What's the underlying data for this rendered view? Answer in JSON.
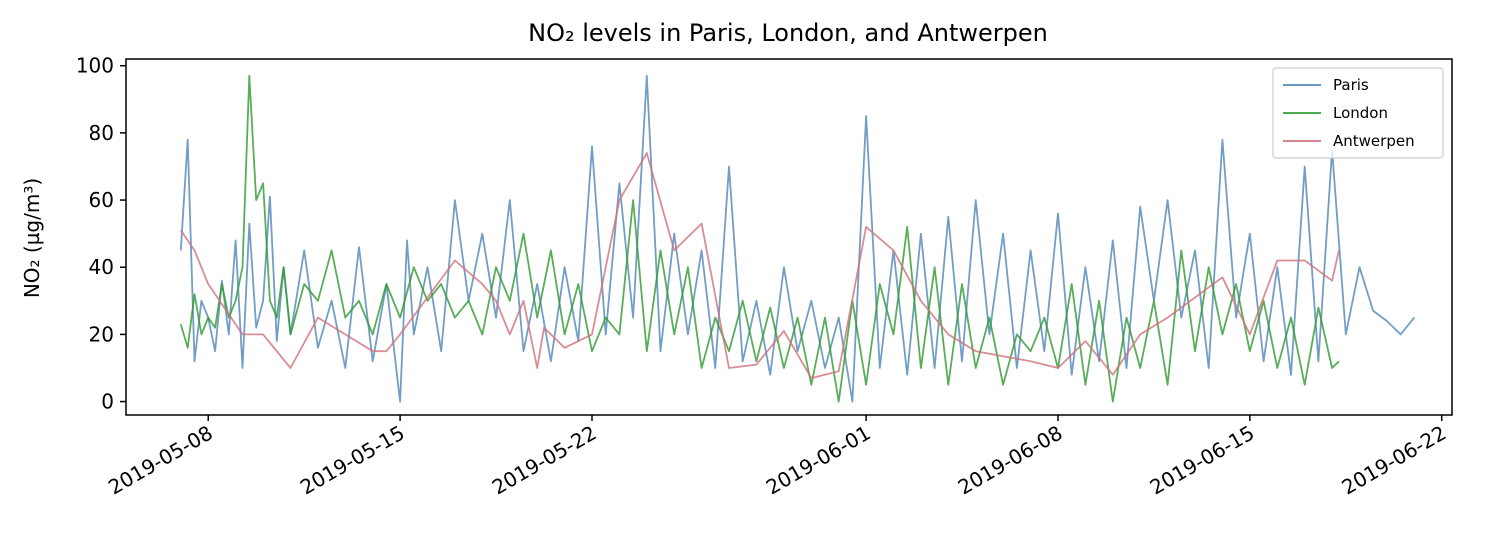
{
  "chart_data": {
    "type": "line",
    "title": "NO₂ levels in Paris, London, and Antwerpen",
    "xlabel": "",
    "ylabel": "NO₂ (µg/m³)",
    "x_type": "datetime",
    "xlim": [
      "2019-05-05T00:00",
      "2019-06-22T09:00"
    ],
    "ylim": [
      -4,
      102
    ],
    "x_ticks": [
      "2019-05-08",
      "2019-05-15",
      "2019-05-22",
      "2019-06-01",
      "2019-06-08",
      "2019-06-15",
      "2019-06-22"
    ],
    "y_ticks": [
      0,
      20,
      40,
      60,
      80,
      100
    ],
    "grid": false,
    "legend": {
      "position": "top-right"
    },
    "series": [
      {
        "name": "Paris",
        "color": "#4f86b8",
        "x": [
          "2019-05-07T00:00",
          "2019-05-07T06:00",
          "2019-05-07T12:00",
          "2019-05-07T18:00",
          "2019-05-08T00:00",
          "2019-05-08T06:00",
          "2019-05-08T12:00",
          "2019-05-08T18:00",
          "2019-05-09T00:00",
          "2019-05-09T06:00",
          "2019-05-09T12:00",
          "2019-05-09T18:00",
          "2019-05-10T00:00",
          "2019-05-10T06:00",
          "2019-05-10T12:00",
          "2019-05-10T18:00",
          "2019-05-11T00:00",
          "2019-05-11T12:00",
          "2019-05-12T00:00",
          "2019-05-12T12:00",
          "2019-05-13T00:00",
          "2019-05-13T12:00",
          "2019-05-14T00:00",
          "2019-05-14T12:00",
          "2019-05-15T00:00",
          "2019-05-15T06:00",
          "2019-05-15T12:00",
          "2019-05-16T00:00",
          "2019-05-16T12:00",
          "2019-05-17T00:00",
          "2019-05-17T12:00",
          "2019-05-18T00:00",
          "2019-05-18T12:00",
          "2019-05-19T00:00",
          "2019-05-19T12:00",
          "2019-05-20T00:00",
          "2019-05-20T12:00",
          "2019-05-21T00:00",
          "2019-05-21T12:00",
          "2019-05-22T00:00",
          "2019-05-22T12:00",
          "2019-05-23T00:00",
          "2019-05-23T12:00",
          "2019-05-24T00:00",
          "2019-05-24T12:00",
          "2019-05-25T00:00",
          "2019-05-25T12:00",
          "2019-05-26T00:00",
          "2019-05-26T12:00",
          "2019-05-27T00:00",
          "2019-05-27T12:00",
          "2019-05-28T00:00",
          "2019-05-28T12:00",
          "2019-05-29T00:00",
          "2019-05-29T12:00",
          "2019-05-30T00:00",
          "2019-05-30T12:00",
          "2019-05-31T00:00",
          "2019-05-31T12:00",
          "2019-06-01T00:00",
          "2019-06-01T12:00",
          "2019-06-02T00:00",
          "2019-06-02T12:00",
          "2019-06-03T00:00",
          "2019-06-03T12:00",
          "2019-06-04T00:00",
          "2019-06-04T12:00",
          "2019-06-05T00:00",
          "2019-06-05T12:00",
          "2019-06-06T00:00",
          "2019-06-06T12:00",
          "2019-06-07T00:00",
          "2019-06-07T12:00",
          "2019-06-08T00:00",
          "2019-06-08T12:00",
          "2019-06-09T00:00",
          "2019-06-09T12:00",
          "2019-06-10T00:00",
          "2019-06-10T12:00",
          "2019-06-11T00:00",
          "2019-06-11T12:00",
          "2019-06-12T00:00",
          "2019-06-12T12:00",
          "2019-06-13T00:00",
          "2019-06-13T12:00",
          "2019-06-14T00:00",
          "2019-06-14T12:00",
          "2019-06-15T00:00",
          "2019-06-15T12:00",
          "2019-06-16T00:00",
          "2019-06-16T12:00",
          "2019-06-17T00:00",
          "2019-06-17T12:00",
          "2019-06-18T00:00",
          "2019-06-18T12:00",
          "2019-06-19T00:00",
          "2019-06-19T12:00",
          "2019-06-20T00:00",
          "2019-06-20T12:00",
          "2019-06-21T00:00"
        ],
        "y": [
          45,
          78,
          12,
          30,
          25,
          15,
          36,
          20,
          48,
          10,
          53,
          22,
          30,
          61,
          18,
          40,
          20,
          45,
          16,
          30,
          10,
          46,
          12,
          35,
          0,
          48,
          20,
          40,
          15,
          60,
          30,
          50,
          25,
          60,
          15,
          35,
          12,
          40,
          18,
          76,
          20,
          65,
          25,
          97,
          15,
          50,
          20,
          45,
          10,
          70,
          12,
          30,
          8,
          40,
          15,
          30,
          10,
          25,
          0,
          85,
          10,
          45,
          8,
          50,
          10,
          55,
          12,
          60,
          20,
          50,
          10,
          45,
          15,
          56,
          8,
          40,
          12,
          48,
          10,
          58,
          30,
          60,
          25,
          45,
          10,
          78,
          25,
          50,
          12,
          40,
          8,
          70,
          12,
          75,
          20,
          40,
          27,
          24,
          20,
          25
        ]
      },
      {
        "name": "London",
        "color": "#2e9a2e",
        "x": [
          "2019-05-07T00:00",
          "2019-05-07T06:00",
          "2019-05-07T12:00",
          "2019-05-07T18:00",
          "2019-05-08T00:00",
          "2019-05-08T06:00",
          "2019-05-08T12:00",
          "2019-05-08T18:00",
          "2019-05-09T00:00",
          "2019-05-09T06:00",
          "2019-05-09T12:00",
          "2019-05-09T18:00",
          "2019-05-10T00:00",
          "2019-05-10T06:00",
          "2019-05-10T12:00",
          "2019-05-10T18:00",
          "2019-05-11T00:00",
          "2019-05-11T12:00",
          "2019-05-12T00:00",
          "2019-05-12T12:00",
          "2019-05-13T00:00",
          "2019-05-13T12:00",
          "2019-05-14T00:00",
          "2019-05-14T12:00",
          "2019-05-15T00:00",
          "2019-05-15T12:00",
          "2019-05-16T00:00",
          "2019-05-16T12:00",
          "2019-05-17T00:00",
          "2019-05-17T12:00",
          "2019-05-18T00:00",
          "2019-05-18T12:00",
          "2019-05-19T00:00",
          "2019-05-19T12:00",
          "2019-05-20T00:00",
          "2019-05-20T12:00",
          "2019-05-21T00:00",
          "2019-05-21T12:00",
          "2019-05-22T00:00",
          "2019-05-22T12:00",
          "2019-05-23T00:00",
          "2019-05-23T12:00",
          "2019-05-24T00:00",
          "2019-05-24T12:00",
          "2019-05-25T00:00",
          "2019-05-25T12:00",
          "2019-05-26T00:00",
          "2019-05-26T12:00",
          "2019-05-27T00:00",
          "2019-05-27T12:00",
          "2019-05-28T00:00",
          "2019-05-28T12:00",
          "2019-05-29T00:00",
          "2019-05-29T12:00",
          "2019-05-30T00:00",
          "2019-05-30T12:00",
          "2019-05-31T00:00",
          "2019-05-31T12:00",
          "2019-06-01T00:00",
          "2019-06-01T12:00",
          "2019-06-02T00:00",
          "2019-06-02T12:00",
          "2019-06-03T00:00",
          "2019-06-03T12:00",
          "2019-06-04T00:00",
          "2019-06-04T12:00",
          "2019-06-05T00:00",
          "2019-06-05T12:00",
          "2019-06-06T00:00",
          "2019-06-06T12:00",
          "2019-06-07T00:00",
          "2019-06-07T12:00",
          "2019-06-08T00:00",
          "2019-06-08T12:00",
          "2019-06-09T00:00",
          "2019-06-09T12:00",
          "2019-06-10T00:00",
          "2019-06-10T12:00",
          "2019-06-11T00:00",
          "2019-06-11T12:00",
          "2019-06-12T00:00",
          "2019-06-12T12:00",
          "2019-06-13T00:00",
          "2019-06-13T12:00",
          "2019-06-14T00:00",
          "2019-06-14T12:00",
          "2019-06-15T00:00",
          "2019-06-15T12:00",
          "2019-06-16T00:00",
          "2019-06-16T12:00",
          "2019-06-17T00:00",
          "2019-06-17T12:00",
          "2019-06-18T00:00",
          "2019-06-18T06:00"
        ],
        "y": [
          23,
          16,
          32,
          20,
          25,
          22,
          35,
          25,
          30,
          40,
          97,
          60,
          65,
          30,
          25,
          40,
          20,
          35,
          30,
          45,
          25,
          30,
          20,
          35,
          25,
          40,
          30,
          35,
          25,
          30,
          20,
          40,
          30,
          50,
          25,
          45,
          20,
          35,
          15,
          25,
          20,
          60,
          15,
          45,
          20,
          40,
          10,
          25,
          15,
          30,
          12,
          28,
          10,
          25,
          5,
          25,
          0,
          30,
          5,
          35,
          20,
          52,
          10,
          40,
          5,
          35,
          10,
          25,
          5,
          20,
          15,
          25,
          10,
          35,
          5,
          30,
          0,
          25,
          10,
          30,
          5,
          45,
          15,
          40,
          20,
          35,
          15,
          30,
          10,
          25,
          5,
          28,
          10,
          12
        ]
      },
      {
        "name": "Antwerpen",
        "color": "#d07079",
        "x": [
          "2019-05-07T00:00",
          "2019-05-07T12:00",
          "2019-05-08T00:00",
          "2019-05-09T06:00",
          "2019-05-10T00:00",
          "2019-05-11T00:00",
          "2019-05-12T00:00",
          "2019-05-13T00:00",
          "2019-05-14T00:00",
          "2019-05-14T12:00",
          "2019-05-15T00:00",
          "2019-05-17T00:00",
          "2019-05-18T00:00",
          "2019-05-18T12:00",
          "2019-05-19T00:00",
          "2019-05-19T12:00",
          "2019-05-20T00:00",
          "2019-05-20T06:00",
          "2019-05-21T00:00",
          "2019-05-22T00:00",
          "2019-05-23T00:00",
          "2019-05-24T00:00",
          "2019-05-25T00:00",
          "2019-05-26T00:00",
          "2019-05-27T00:00",
          "2019-05-28T00:00",
          "2019-05-29T00:00",
          "2019-05-30T00:00",
          "2019-05-31T00:00",
          "2019-06-01T00:00",
          "2019-06-02T00:00",
          "2019-06-03T00:00",
          "2019-06-04T00:00",
          "2019-06-05T00:00",
          "2019-06-07T00:00",
          "2019-06-08T00:00",
          "2019-06-09T00:00",
          "2019-06-10T00:00",
          "2019-06-11T00:00",
          "2019-06-12T00:00",
          "2019-06-14T00:00",
          "2019-06-15T00:00",
          "2019-06-16T00:00",
          "2019-06-17T00:00",
          "2019-06-18T00:00",
          "2019-06-18T06:00"
        ],
        "y": [
          51,
          45,
          35,
          20,
          20,
          10,
          25,
          20,
          15,
          15,
          20,
          42,
          35,
          30,
          20,
          30,
          10,
          22,
          16,
          20,
          60,
          74,
          45,
          53,
          10,
          11,
          21,
          7,
          9,
          52,
          45,
          30,
          20,
          15,
          12,
          10,
          18,
          8,
          20,
          25,
          37,
          20,
          42,
          42,
          36,
          45
        ]
      }
    ]
  }
}
